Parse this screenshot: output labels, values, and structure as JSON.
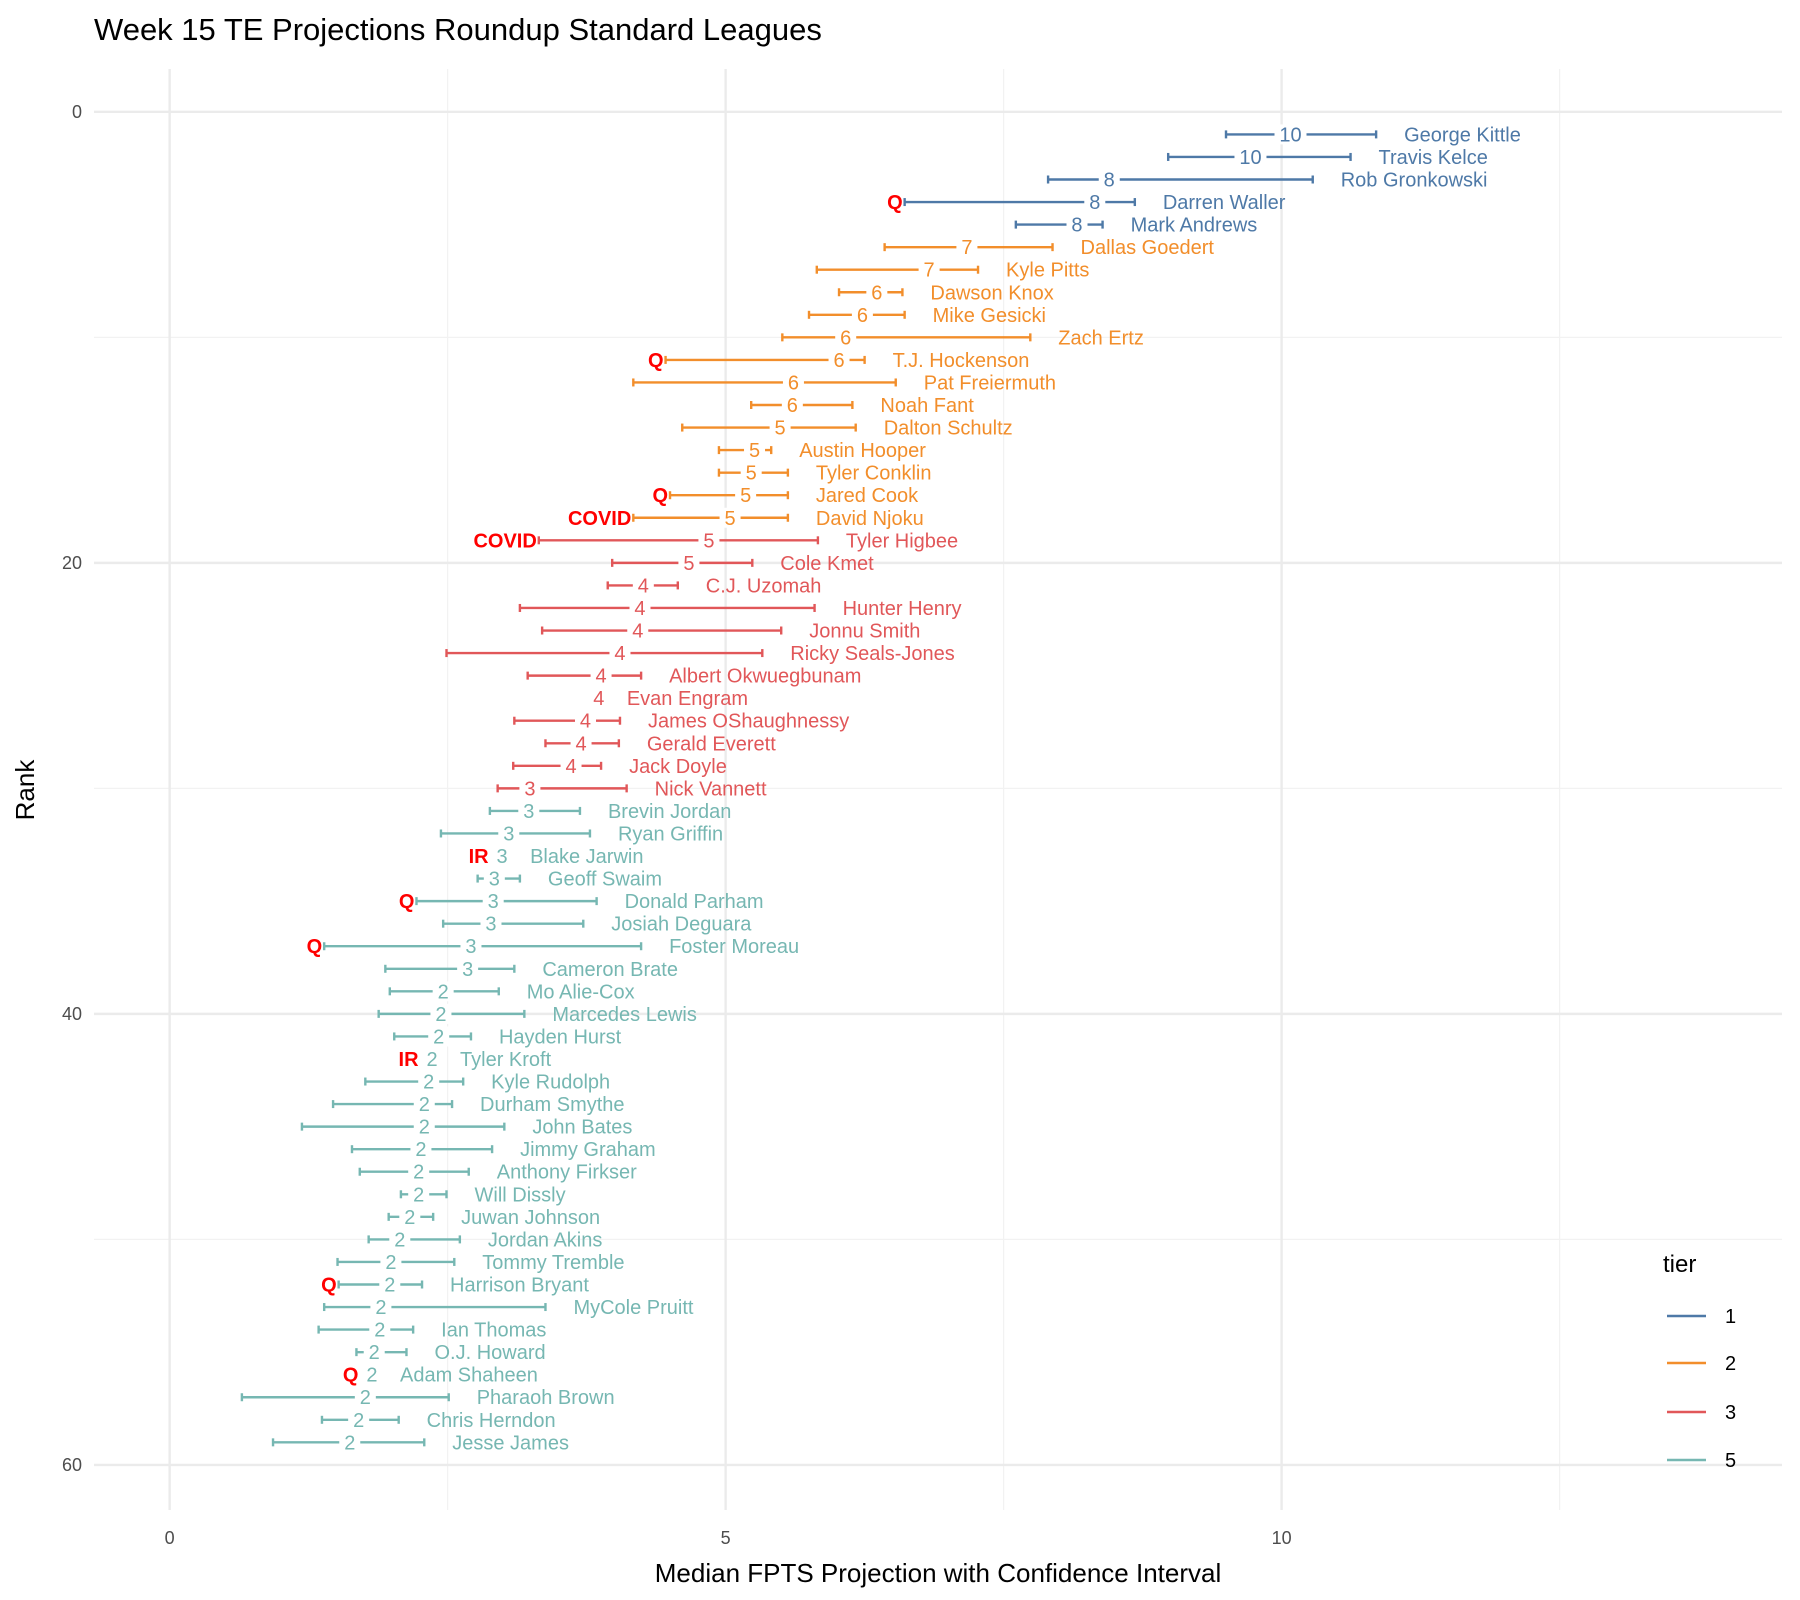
{
  "chart_data": {
    "type": "errorbar",
    "title": "Week 15 TE Projections Roundup Standard Leagues",
    "xlabel": "Median FPTS Projection with Confidence Interval",
    "ylabel": "Rank",
    "xlim": [
      -0.68,
      14.5
    ],
    "ylim": [
      -1.9,
      62
    ],
    "x_ticks": [
      0,
      5,
      10
    ],
    "y_ticks": [
      0,
      20,
      40,
      60
    ],
    "grid": true,
    "y_reversed": true,
    "legend": {
      "title": "tier",
      "placement": "bottom-right",
      "entries": [
        {
          "label": "1",
          "color": "#4E79A7"
        },
        {
          "label": "2",
          "color": "#F28E2B"
        },
        {
          "label": "3",
          "color": "#E15759"
        },
        {
          "label": "5",
          "color": "#76B7B2"
        }
      ]
    },
    "note_color": "#FF0000",
    "players": [
      {
        "rank": 1,
        "name": "George Kittle",
        "tier": "1",
        "median": 10.08,
        "lo": 9.5,
        "hi": 10.85,
        "label": "10"
      },
      {
        "rank": 2,
        "name": "Travis Kelce",
        "tier": "1",
        "median": 9.72,
        "lo": 8.98,
        "hi": 10.62,
        "label": "10"
      },
      {
        "rank": 3,
        "name": "Rob Gronkowski",
        "tier": "1",
        "median": 8.45,
        "lo": 7.9,
        "hi": 10.28,
        "label": "8"
      },
      {
        "rank": 4,
        "name": "Darren Waller",
        "tier": "1",
        "median": 8.32,
        "lo": 6.61,
        "hi": 8.68,
        "label": "8",
        "note": "Q"
      },
      {
        "rank": 5,
        "name": "Mark Andrews",
        "tier": "1",
        "median": 8.16,
        "lo": 7.61,
        "hi": 8.39,
        "label": "8"
      },
      {
        "rank": 6,
        "name": "Dallas Goedert",
        "tier": "2",
        "median": 7.17,
        "lo": 6.43,
        "hi": 7.94,
        "label": "7"
      },
      {
        "rank": 7,
        "name": "Kyle Pitts",
        "tier": "2",
        "median": 6.83,
        "lo": 5.82,
        "hi": 7.27,
        "label": "7"
      },
      {
        "rank": 8,
        "name": "Dawson Knox",
        "tier": "2",
        "median": 6.36,
        "lo": 6.02,
        "hi": 6.59,
        "label": "6"
      },
      {
        "rank": 9,
        "name": "Mike Gesicki",
        "tier": "2",
        "median": 6.23,
        "lo": 5.75,
        "hi": 6.61,
        "label": "6"
      },
      {
        "rank": 10,
        "name": "Zach Ertz",
        "tier": "2",
        "median": 6.08,
        "lo": 5.51,
        "hi": 7.74,
        "label": "6"
      },
      {
        "rank": 11,
        "name": "T.J. Hockenson",
        "tier": "2",
        "median": 6.02,
        "lo": 4.46,
        "hi": 6.25,
        "label": "6",
        "note": "Q"
      },
      {
        "rank": 12,
        "name": "Pat Freiermuth",
        "tier": "2",
        "median": 5.61,
        "lo": 4.17,
        "hi": 6.53,
        "label": "6"
      },
      {
        "rank": 13,
        "name": "Noah Fant",
        "tier": "2",
        "median": 5.6,
        "lo": 5.23,
        "hi": 6.14,
        "label": "6"
      },
      {
        "rank": 14,
        "name": "Dalton Schultz",
        "tier": "2",
        "median": 5.49,
        "lo": 4.61,
        "hi": 6.17,
        "label": "5"
      },
      {
        "rank": 15,
        "name": "Austin Hooper",
        "tier": "2",
        "median": 5.26,
        "lo": 4.94,
        "hi": 5.41,
        "label": "5"
      },
      {
        "rank": 16,
        "name": "Tyler Conklin",
        "tier": "2",
        "median": 5.23,
        "lo": 4.94,
        "hi": 5.56,
        "label": "5"
      },
      {
        "rank": 17,
        "name": "Jared Cook",
        "tier": "2",
        "median": 5.18,
        "lo": 4.5,
        "hi": 5.56,
        "label": "5",
        "note": "Q"
      },
      {
        "rank": 18,
        "name": "David Njoku",
        "tier": "2",
        "median": 5.04,
        "lo": 4.17,
        "hi": 5.56,
        "label": "5",
        "note": "COVID"
      },
      {
        "rank": 19,
        "name": "Tyler Higbee",
        "tier": "3",
        "median": 4.85,
        "lo": 3.32,
        "hi": 5.83,
        "label": "5",
        "note": "COVID"
      },
      {
        "rank": 20,
        "name": "Cole Kmet",
        "tier": "3",
        "median": 4.67,
        "lo": 3.98,
        "hi": 5.24,
        "label": "5"
      },
      {
        "rank": 21,
        "name": "C.J. Uzomah",
        "tier": "3",
        "median": 4.26,
        "lo": 3.94,
        "hi": 4.57,
        "label": "4"
      },
      {
        "rank": 22,
        "name": "Hunter Henry",
        "tier": "3",
        "median": 4.23,
        "lo": 3.15,
        "hi": 5.8,
        "label": "4"
      },
      {
        "rank": 23,
        "name": "Jonnu Smith",
        "tier": "3",
        "median": 4.21,
        "lo": 3.35,
        "hi": 5.5,
        "label": "4"
      },
      {
        "rank": 24,
        "name": "Ricky Seals-Jones",
        "tier": "3",
        "median": 4.05,
        "lo": 2.49,
        "hi": 5.33,
        "label": "4"
      },
      {
        "rank": 25,
        "name": "Albert Okwuegbunam",
        "tier": "3",
        "median": 3.88,
        "lo": 3.22,
        "hi": 4.24,
        "label": "4"
      },
      {
        "rank": 26,
        "name": "Evan Engram",
        "tier": "3",
        "median": 3.86,
        "lo": 3.86,
        "hi": 3.86,
        "label": "4"
      },
      {
        "rank": 27,
        "name": "James OShaughnessy",
        "tier": "3",
        "median": 3.74,
        "lo": 3.1,
        "hi": 4.05,
        "label": "4"
      },
      {
        "rank": 28,
        "name": "Gerald Everett",
        "tier": "3",
        "median": 3.7,
        "lo": 3.38,
        "hi": 4.04,
        "label": "4"
      },
      {
        "rank": 29,
        "name": "Jack Doyle",
        "tier": "3",
        "median": 3.61,
        "lo": 3.09,
        "hi": 3.88,
        "label": "4"
      },
      {
        "rank": 30,
        "name": "Nick Vannett",
        "tier": "3",
        "median": 3.24,
        "lo": 2.95,
        "hi": 4.11,
        "label": "3"
      },
      {
        "rank": 31,
        "name": "Brevin Jordan",
        "tier": "5",
        "median": 3.23,
        "lo": 2.88,
        "hi": 3.69,
        "label": "3"
      },
      {
        "rank": 32,
        "name": "Ryan Griffin",
        "tier": "5",
        "median": 3.05,
        "lo": 2.44,
        "hi": 3.78,
        "label": "3"
      },
      {
        "rank": 33,
        "name": "Blake Jarwin",
        "tier": "5",
        "median": 2.99,
        "lo": 2.99,
        "hi": 2.99,
        "label": "3",
        "note": "IR"
      },
      {
        "rank": 34,
        "name": "Geoff Swaim",
        "tier": "5",
        "median": 2.92,
        "lo": 2.77,
        "hi": 3.15,
        "label": "3"
      },
      {
        "rank": 35,
        "name": "Donald Parham",
        "tier": "5",
        "median": 2.91,
        "lo": 2.22,
        "hi": 3.84,
        "label": "3",
        "note": "Q"
      },
      {
        "rank": 36,
        "name": "Josiah Deguara",
        "tier": "5",
        "median": 2.89,
        "lo": 2.46,
        "hi": 3.72,
        "label": "3"
      },
      {
        "rank": 37,
        "name": "Foster Moreau",
        "tier": "5",
        "median": 2.71,
        "lo": 1.39,
        "hi": 4.24,
        "label": "3",
        "note": "Q"
      },
      {
        "rank": 38,
        "name": "Cameron Brate",
        "tier": "5",
        "median": 2.68,
        "lo": 1.94,
        "hi": 3.1,
        "label": "3"
      },
      {
        "rank": 39,
        "name": "Mo Alie-Cox",
        "tier": "5",
        "median": 2.46,
        "lo": 1.98,
        "hi": 2.96,
        "label": "2"
      },
      {
        "rank": 40,
        "name": "Marcedes Lewis",
        "tier": "5",
        "median": 2.44,
        "lo": 1.88,
        "hi": 3.19,
        "label": "2"
      },
      {
        "rank": 41,
        "name": "Hayden Hurst",
        "tier": "5",
        "median": 2.42,
        "lo": 2.02,
        "hi": 2.71,
        "label": "2"
      },
      {
        "rank": 42,
        "name": "Tyler Kroft",
        "tier": "5",
        "median": 2.36,
        "lo": 2.36,
        "hi": 2.36,
        "label": "2",
        "note": "IR"
      },
      {
        "rank": 43,
        "name": "Kyle Rudolph",
        "tier": "5",
        "median": 2.33,
        "lo": 1.76,
        "hi": 2.64,
        "label": "2"
      },
      {
        "rank": 44,
        "name": "Durham Smythe",
        "tier": "5",
        "median": 2.29,
        "lo": 1.47,
        "hi": 2.54,
        "label": "2"
      },
      {
        "rank": 45,
        "name": "John Bates",
        "tier": "5",
        "median": 2.29,
        "lo": 1.19,
        "hi": 3.01,
        "label": "2"
      },
      {
        "rank": 46,
        "name": "Jimmy Graham",
        "tier": "5",
        "median": 2.26,
        "lo": 1.64,
        "hi": 2.9,
        "label": "2"
      },
      {
        "rank": 47,
        "name": "Anthony Firkser",
        "tier": "5",
        "median": 2.24,
        "lo": 1.71,
        "hi": 2.69,
        "label": "2"
      },
      {
        "rank": 48,
        "name": "Will Dissly",
        "tier": "5",
        "median": 2.24,
        "lo": 2.08,
        "hi": 2.49,
        "label": "2"
      },
      {
        "rank": 49,
        "name": "Juwan Johnson",
        "tier": "5",
        "median": 2.16,
        "lo": 1.97,
        "hi": 2.37,
        "label": "2"
      },
      {
        "rank": 50,
        "name": "Jordan Akins",
        "tier": "5",
        "median": 2.07,
        "lo": 1.79,
        "hi": 2.61,
        "label": "2"
      },
      {
        "rank": 51,
        "name": "Tommy Tremble",
        "tier": "5",
        "median": 1.99,
        "lo": 1.51,
        "hi": 2.56,
        "label": "2"
      },
      {
        "rank": 52,
        "name": "Harrison Bryant",
        "tier": "5",
        "median": 1.98,
        "lo": 1.52,
        "hi": 2.27,
        "label": "2",
        "note": "Q"
      },
      {
        "rank": 53,
        "name": "MyCole Pruitt",
        "tier": "5",
        "median": 1.9,
        "lo": 1.39,
        "hi": 3.38,
        "label": "2"
      },
      {
        "rank": 54,
        "name": "Ian Thomas",
        "tier": "5",
        "median": 1.89,
        "lo": 1.34,
        "hi": 2.19,
        "label": "2"
      },
      {
        "rank": 55,
        "name": "O.J. Howard",
        "tier": "5",
        "median": 1.84,
        "lo": 1.68,
        "hi": 2.13,
        "label": "2"
      },
      {
        "rank": 56,
        "name": "Adam Shaheen",
        "tier": "5",
        "median": 1.82,
        "lo": 1.82,
        "hi": 1.82,
        "label": "2",
        "note": "Q"
      },
      {
        "rank": 57,
        "name": "Pharaoh Brown",
        "tier": "5",
        "median": 1.76,
        "lo": 0.65,
        "hi": 2.51,
        "label": "2"
      },
      {
        "rank": 58,
        "name": "Chris Herndon",
        "tier": "5",
        "median": 1.7,
        "lo": 1.37,
        "hi": 2.06,
        "label": "2"
      },
      {
        "rank": 59,
        "name": "Jesse James",
        "tier": "5",
        "median": 1.62,
        "lo": 0.93,
        "hi": 2.29,
        "label": "2"
      }
    ]
  }
}
